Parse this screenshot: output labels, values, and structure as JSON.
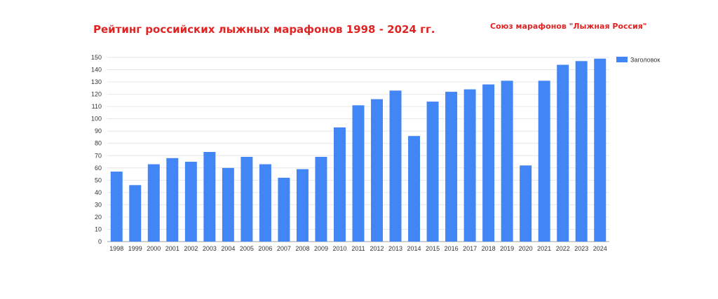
{
  "header": {
    "title": "Рейтинг российских лыжных марафонов 1998 - 2024 гг.",
    "subtitle": "Союз марафонов \"Лыжная Россия\""
  },
  "colors": {
    "bar": "#4285f4",
    "title": "#e02424",
    "grid": "#e6e6e6",
    "axis": "#9e9e9e"
  },
  "chart_data": {
    "type": "bar",
    "title": "Рейтинг российских лыжных марафонов 1998 - 2024 гг.",
    "xlabel": "",
    "ylabel": "",
    "ylim": [
      0,
      150
    ],
    "yticks": [
      0,
      10,
      20,
      30,
      40,
      50,
      60,
      70,
      80,
      90,
      100,
      110,
      120,
      130,
      140,
      150
    ],
    "grid": true,
    "legend_position": "right",
    "categories": [
      "1998",
      "1999",
      "2000",
      "2001",
      "2002",
      "2003",
      "2004",
      "2005",
      "2006",
      "2007",
      "2008",
      "2009",
      "2010",
      "2011",
      "2012",
      "2013",
      "2014",
      "2015",
      "2016",
      "2017",
      "2018",
      "2019",
      "2020",
      "2021",
      "2022",
      "2023",
      "2024"
    ],
    "series": [
      {
        "name": "Заголовок",
        "color": "#4285f4",
        "values": [
          57,
          46,
          63,
          68,
          65,
          73,
          60,
          69,
          63,
          52,
          59,
          69,
          93,
          111,
          116,
          123,
          86,
          114,
          122,
          124,
          128,
          131,
          62,
          131,
          144,
          147,
          149
        ]
      }
    ]
  }
}
